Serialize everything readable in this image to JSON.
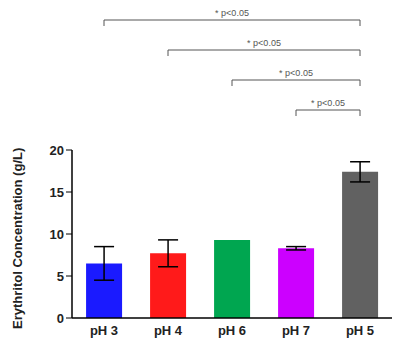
{
  "chart_data": {
    "type": "bar",
    "categories": [
      "pH 3",
      "pH 4",
      "pH 6",
      "pH 7",
      "pH 5"
    ],
    "values": [
      6.5,
      7.7,
      9.3,
      8.3,
      17.4
    ],
    "errors": [
      2.0,
      1.6,
      0,
      0.2,
      1.2
    ],
    "colors": [
      "#1a1aff",
      "#ff1a1a",
      "#00a650",
      "#cc00ff",
      "#616161"
    ],
    "y_label": "Erythritol Concentration (g/L)",
    "ylim": [
      0,
      20
    ],
    "yticks": [
      0,
      5,
      10,
      15,
      20
    ],
    "annotations": [
      {
        "text": "* p<0.05",
        "from": "pH 3",
        "to": "pH 5"
      },
      {
        "text": "* p<0.05",
        "from": "pH 4",
        "to": "pH 5"
      },
      {
        "text": "* p<0.05",
        "from": "pH 6",
        "to": "pH 5"
      },
      {
        "text": "* p<0.05",
        "from": "pH 7",
        "to": "pH 5"
      }
    ]
  }
}
